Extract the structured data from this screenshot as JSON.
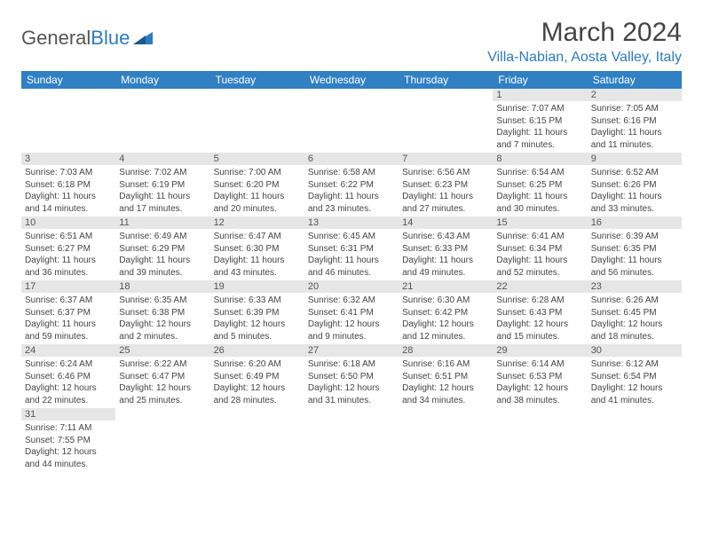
{
  "brand": {
    "part1": "General",
    "part2": "Blue"
  },
  "title": "March 2024",
  "location": "Villa-Nabian, Aosta Valley, Italy",
  "colors": {
    "header_bg": "#3080c3",
    "header_fg": "#ffffff",
    "daynum_bg": "#e6e6e6",
    "accent": "#2b7bbf"
  },
  "weekdays": [
    "Sunday",
    "Monday",
    "Tuesday",
    "Wednesday",
    "Thursday",
    "Friday",
    "Saturday"
  ],
  "weeks": [
    [
      {
        "n": "",
        "lines": [
          "",
          "",
          "",
          ""
        ]
      },
      {
        "n": "",
        "lines": [
          "",
          "",
          "",
          ""
        ]
      },
      {
        "n": "",
        "lines": [
          "",
          "",
          "",
          ""
        ]
      },
      {
        "n": "",
        "lines": [
          "",
          "",
          "",
          ""
        ]
      },
      {
        "n": "",
        "lines": [
          "",
          "",
          "",
          ""
        ]
      },
      {
        "n": "1",
        "lines": [
          "Sunrise: 7:07 AM",
          "Sunset: 6:15 PM",
          "Daylight: 11 hours",
          "and 7 minutes."
        ]
      },
      {
        "n": "2",
        "lines": [
          "Sunrise: 7:05 AM",
          "Sunset: 6:16 PM",
          "Daylight: 11 hours",
          "and 11 minutes."
        ]
      }
    ],
    [
      {
        "n": "3",
        "lines": [
          "Sunrise: 7:03 AM",
          "Sunset: 6:18 PM",
          "Daylight: 11 hours",
          "and 14 minutes."
        ]
      },
      {
        "n": "4",
        "lines": [
          "Sunrise: 7:02 AM",
          "Sunset: 6:19 PM",
          "Daylight: 11 hours",
          "and 17 minutes."
        ]
      },
      {
        "n": "5",
        "lines": [
          "Sunrise: 7:00 AM",
          "Sunset: 6:20 PM",
          "Daylight: 11 hours",
          "and 20 minutes."
        ]
      },
      {
        "n": "6",
        "lines": [
          "Sunrise: 6:58 AM",
          "Sunset: 6:22 PM",
          "Daylight: 11 hours",
          "and 23 minutes."
        ]
      },
      {
        "n": "7",
        "lines": [
          "Sunrise: 6:56 AM",
          "Sunset: 6:23 PM",
          "Daylight: 11 hours",
          "and 27 minutes."
        ]
      },
      {
        "n": "8",
        "lines": [
          "Sunrise: 6:54 AM",
          "Sunset: 6:25 PM",
          "Daylight: 11 hours",
          "and 30 minutes."
        ]
      },
      {
        "n": "9",
        "lines": [
          "Sunrise: 6:52 AM",
          "Sunset: 6:26 PM",
          "Daylight: 11 hours",
          "and 33 minutes."
        ]
      }
    ],
    [
      {
        "n": "10",
        "lines": [
          "Sunrise: 6:51 AM",
          "Sunset: 6:27 PM",
          "Daylight: 11 hours",
          "and 36 minutes."
        ]
      },
      {
        "n": "11",
        "lines": [
          "Sunrise: 6:49 AM",
          "Sunset: 6:29 PM",
          "Daylight: 11 hours",
          "and 39 minutes."
        ]
      },
      {
        "n": "12",
        "lines": [
          "Sunrise: 6:47 AM",
          "Sunset: 6:30 PM",
          "Daylight: 11 hours",
          "and 43 minutes."
        ]
      },
      {
        "n": "13",
        "lines": [
          "Sunrise: 6:45 AM",
          "Sunset: 6:31 PM",
          "Daylight: 11 hours",
          "and 46 minutes."
        ]
      },
      {
        "n": "14",
        "lines": [
          "Sunrise: 6:43 AM",
          "Sunset: 6:33 PM",
          "Daylight: 11 hours",
          "and 49 minutes."
        ]
      },
      {
        "n": "15",
        "lines": [
          "Sunrise: 6:41 AM",
          "Sunset: 6:34 PM",
          "Daylight: 11 hours",
          "and 52 minutes."
        ]
      },
      {
        "n": "16",
        "lines": [
          "Sunrise: 6:39 AM",
          "Sunset: 6:35 PM",
          "Daylight: 11 hours",
          "and 56 minutes."
        ]
      }
    ],
    [
      {
        "n": "17",
        "lines": [
          "Sunrise: 6:37 AM",
          "Sunset: 6:37 PM",
          "Daylight: 11 hours",
          "and 59 minutes."
        ]
      },
      {
        "n": "18",
        "lines": [
          "Sunrise: 6:35 AM",
          "Sunset: 6:38 PM",
          "Daylight: 12 hours",
          "and 2 minutes."
        ]
      },
      {
        "n": "19",
        "lines": [
          "Sunrise: 6:33 AM",
          "Sunset: 6:39 PM",
          "Daylight: 12 hours",
          "and 5 minutes."
        ]
      },
      {
        "n": "20",
        "lines": [
          "Sunrise: 6:32 AM",
          "Sunset: 6:41 PM",
          "Daylight: 12 hours",
          "and 9 minutes."
        ]
      },
      {
        "n": "21",
        "lines": [
          "Sunrise: 6:30 AM",
          "Sunset: 6:42 PM",
          "Daylight: 12 hours",
          "and 12 minutes."
        ]
      },
      {
        "n": "22",
        "lines": [
          "Sunrise: 6:28 AM",
          "Sunset: 6:43 PM",
          "Daylight: 12 hours",
          "and 15 minutes."
        ]
      },
      {
        "n": "23",
        "lines": [
          "Sunrise: 6:26 AM",
          "Sunset: 6:45 PM",
          "Daylight: 12 hours",
          "and 18 minutes."
        ]
      }
    ],
    [
      {
        "n": "24",
        "lines": [
          "Sunrise: 6:24 AM",
          "Sunset: 6:46 PM",
          "Daylight: 12 hours",
          "and 22 minutes."
        ]
      },
      {
        "n": "25",
        "lines": [
          "Sunrise: 6:22 AM",
          "Sunset: 6:47 PM",
          "Daylight: 12 hours",
          "and 25 minutes."
        ]
      },
      {
        "n": "26",
        "lines": [
          "Sunrise: 6:20 AM",
          "Sunset: 6:49 PM",
          "Daylight: 12 hours",
          "and 28 minutes."
        ]
      },
      {
        "n": "27",
        "lines": [
          "Sunrise: 6:18 AM",
          "Sunset: 6:50 PM",
          "Daylight: 12 hours",
          "and 31 minutes."
        ]
      },
      {
        "n": "28",
        "lines": [
          "Sunrise: 6:16 AM",
          "Sunset: 6:51 PM",
          "Daylight: 12 hours",
          "and 34 minutes."
        ]
      },
      {
        "n": "29",
        "lines": [
          "Sunrise: 6:14 AM",
          "Sunset: 6:53 PM",
          "Daylight: 12 hours",
          "and 38 minutes."
        ]
      },
      {
        "n": "30",
        "lines": [
          "Sunrise: 6:12 AM",
          "Sunset: 6:54 PM",
          "Daylight: 12 hours",
          "and 41 minutes."
        ]
      }
    ],
    [
      {
        "n": "31",
        "lines": [
          "Sunrise: 7:11 AM",
          "Sunset: 7:55 PM",
          "Daylight: 12 hours",
          "and 44 minutes."
        ]
      },
      {
        "n": "",
        "lines": [
          "",
          "",
          "",
          ""
        ]
      },
      {
        "n": "",
        "lines": [
          "",
          "",
          "",
          ""
        ]
      },
      {
        "n": "",
        "lines": [
          "",
          "",
          "",
          ""
        ]
      },
      {
        "n": "",
        "lines": [
          "",
          "",
          "",
          ""
        ]
      },
      {
        "n": "",
        "lines": [
          "",
          "",
          "",
          ""
        ]
      },
      {
        "n": "",
        "lines": [
          "",
          "",
          "",
          ""
        ]
      }
    ]
  ]
}
